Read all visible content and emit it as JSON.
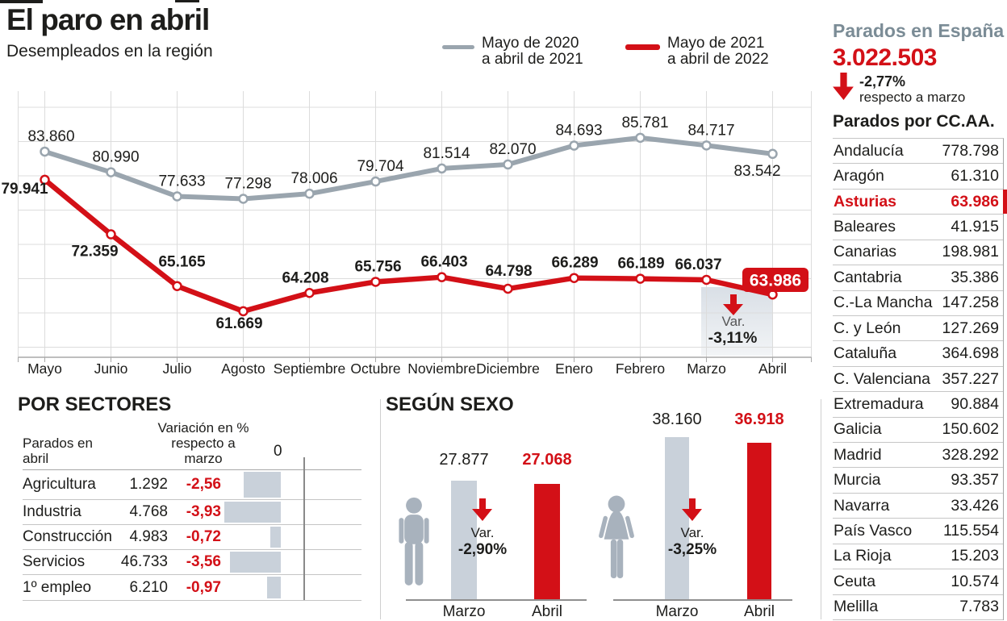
{
  "title": "El paro en abril",
  "subtitle": "Desempleados en la región",
  "legend": {
    "items": [
      {
        "line1": "Mayo de 2020",
        "line2": "a abril de 2021",
        "color": "#9aa5ae"
      },
      {
        "line1": "Mayo de 2021",
        "line2": "a abril de 2022",
        "color": "#d31017"
      }
    ]
  },
  "chart_data": {
    "type": "line",
    "categories": [
      "Mayo",
      "Junio",
      "Julio",
      "Agosto",
      "Septiembre",
      "Octubre",
      "Noviembre",
      "Diciembre",
      "Enero",
      "Febrero",
      "Marzo",
      "Abril"
    ],
    "series": [
      {
        "name": "Mayo de 2020 a abril de 2021",
        "color": "#9aa5ae",
        "values": [
          83860,
          80990,
          77633,
          77298,
          78006,
          79704,
          81514,
          82070,
          84693,
          85781,
          84717,
          83542
        ],
        "labels": [
          "83.860",
          "80.990",
          "77.633",
          "77.298",
          "78.006",
          "79.704",
          "81.514",
          "82.070",
          "84.693",
          "85.781",
          "84.717",
          "83.542"
        ]
      },
      {
        "name": "Mayo de 2021 a abril de 2022",
        "color": "#d31017",
        "values": [
          79941,
          72359,
          65165,
          61669,
          64208,
          65756,
          66403,
          64798,
          66289,
          66189,
          66037,
          63986
        ],
        "labels": [
          "79.941",
          "72.359",
          "65.165",
          "61.669",
          "64.208",
          "65.756",
          "66.403",
          "64.798",
          "66.289",
          "66.189",
          "66.037",
          "63.986"
        ]
      }
    ],
    "annotation": {
      "var_label": "Var.",
      "var_value": "-3,11%",
      "highlight_value": "63.986"
    },
    "grid": true,
    "legend_position": "top-right"
  },
  "sectors": {
    "heading": "POR SECTORES",
    "col1_line1": "Parados en",
    "col1_line2": "abril",
    "col2_line1": "Variación en %",
    "col2_line2": "respecto a",
    "col2_line3": "marzo",
    "axis_zero": "0",
    "chart_data": {
      "type": "bar",
      "categories": [
        "Agricultura",
        "Industria",
        "Construcción",
        "Servicios",
        "1º empleo"
      ],
      "values": [
        -2.56,
        -3.93,
        -0.72,
        -3.56,
        -0.97
      ],
      "title": "Variación en % respecto a marzo"
    },
    "rows": [
      {
        "name": "Agricultura",
        "value": "1.292",
        "variation": "-2,56",
        "variation_num": 2.56
      },
      {
        "name": "Industria",
        "value": "4.768",
        "variation": "-3,93",
        "variation_num": 3.93
      },
      {
        "name": "Construcción",
        "value": "4.983",
        "variation": "-0,72",
        "variation_num": 0.72
      },
      {
        "name": "Servicios",
        "value": "46.733",
        "variation": "-3,56",
        "variation_num": 3.56
      },
      {
        "name": "1º empleo",
        "value": "6.210",
        "variation": "-0,97",
        "variation_num": 0.97
      }
    ]
  },
  "sexo": {
    "heading": "SEGÚN SEXO",
    "chart_data": {
      "type": "bar",
      "categories": [
        "Hombres Marzo",
        "Hombres Abril",
        "Mujeres Marzo",
        "Mujeres Abril"
      ],
      "values": [
        27877,
        27068,
        38160,
        36918
      ]
    },
    "groups": [
      {
        "icon": "man-icon",
        "marzo_value": "27.877",
        "abril_value": "27.068",
        "marzo_num": 27877,
        "abril_num": 27068,
        "var_label": "Var.",
        "var_value": "-2,90%",
        "marzo_label": "Marzo",
        "abril_label": "Abril"
      },
      {
        "icon": "woman-icon",
        "marzo_value": "38.160",
        "abril_value": "36.918",
        "marzo_num": 38160,
        "abril_num": 36918,
        "var_label": "Var.",
        "var_value": "-3,25%",
        "marzo_label": "Marzo",
        "abril_label": "Abril"
      }
    ]
  },
  "sidebar": {
    "heading": "Parados en España",
    "total": "3.022.503",
    "variation": "-2,77%",
    "variation_note": "respecto a marzo",
    "table_heading": "Parados por CC.AA.",
    "rows": [
      {
        "name": "Andalucía",
        "value": "778.798",
        "highlight": false
      },
      {
        "name": "Aragón",
        "value": "61.310",
        "highlight": false
      },
      {
        "name": "Asturias",
        "value": "63.986",
        "highlight": true
      },
      {
        "name": "Baleares",
        "value": "41.915",
        "highlight": false
      },
      {
        "name": "Canarias",
        "value": "198.981",
        "highlight": false
      },
      {
        "name": "Cantabria",
        "value": "35.386",
        "highlight": false
      },
      {
        "name": "C.-La Mancha",
        "value": "147.258",
        "highlight": false
      },
      {
        "name": "C. y León",
        "value": "127.269",
        "highlight": false
      },
      {
        "name": "Cataluña",
        "value": "364.698",
        "highlight": false
      },
      {
        "name": "C. Valenciana",
        "value": "357.227",
        "highlight": false
      },
      {
        "name": "Extremadura",
        "value": "90.884",
        "highlight": false
      },
      {
        "name": "Galicia",
        "value": "150.602",
        "highlight": false
      },
      {
        "name": "Madrid",
        "value": "328.292",
        "highlight": false
      },
      {
        "name": "Murcia",
        "value": "93.357",
        "highlight": false
      },
      {
        "name": "Navarra",
        "value": "33.426",
        "highlight": false
      },
      {
        "name": "País Vasco",
        "value": "115.554",
        "highlight": false
      },
      {
        "name": "La Rioja",
        "value": "15.203",
        "highlight": false
      },
      {
        "name": "Ceuta",
        "value": "10.574",
        "highlight": false
      },
      {
        "name": "Melilla",
        "value": "7.783",
        "highlight": false
      }
    ]
  },
  "colors": {
    "red": "#d31017",
    "gray_line": "#9aa5ae",
    "light_bar": "#c9d1da",
    "icon_gray": "#a8b2bd",
    "slate_heading": "#7b8c96",
    "grid": "#dcdcdc",
    "text": "#1d1d1b"
  }
}
